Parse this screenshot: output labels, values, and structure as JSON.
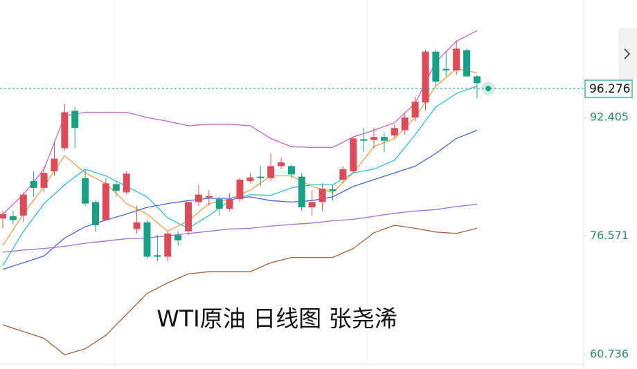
{
  "chart_data": {
    "type": "candlestick",
    "title": "WTI原油 日线图 张尧浠",
    "up_color": "#dd4b58",
    "down_color": "#17a086",
    "open": [
      78.9,
      79.2,
      79.3,
      83.9,
      83.0,
      85.2,
      88.3,
      93.3,
      84.3,
      81.1,
      78.7,
      83.5,
      82.4,
      77.5,
      78.4,
      74.0,
      73.8,
      76.7,
      77.2,
      81.1,
      81.7,
      81.5,
      80.2,
      81.5,
      83.9,
      84.5,
      84.3,
      85.9,
      85.9,
      84.5,
      80.4,
      81.1,
      82.8,
      84.1,
      85.2,
      89.5,
      89.4,
      89.8,
      90.0,
      90.7,
      92.4,
      94.4,
      101.2,
      98.9,
      98.7,
      101.4,
      97.9
    ],
    "close": [
      79.5,
      78.7,
      82.1,
      83.0,
      85.0,
      86.9,
      93.1,
      91.0,
      80.9,
      78.0,
      83.6,
      82.6,
      84.9,
      78.4,
      73.8,
      73.8,
      76.9,
      76.0,
      81.1,
      82.1,
      81.9,
      80.2,
      81.5,
      84.1,
      84.4,
      84.3,
      85.9,
      86.4,
      84.8,
      80.4,
      81.1,
      82.9,
      82.6,
      85.5,
      89.6,
      89.3,
      89.8,
      89.3,
      91.0,
      92.4,
      94.5,
      101.2,
      97.2,
      98.7,
      101.6,
      97.9,
      97.0
    ],
    "high": [
      79.9,
      79.9,
      82.4,
      85.2,
      85.9,
      89.2,
      94.2,
      93.8,
      85.5,
      81.3,
      84.3,
      83.9,
      85.2,
      80.6,
      78.7,
      76.7,
      77.2,
      77.2,
      81.3,
      83.4,
      82.7,
      81.8,
      82.3,
      84.3,
      85.0,
      85.9,
      87.6,
      87.0,
      86.1,
      85.0,
      82.7,
      83.6,
      83.4,
      85.9,
      89.8,
      91.0,
      91.0,
      90.4,
      91.5,
      92.9,
      95.2,
      101.5,
      101.5,
      101.2,
      102.7,
      101.6,
      98.1
    ],
    "low": [
      77.6,
      78.1,
      78.4,
      81.8,
      82.4,
      84.6,
      88.0,
      88.3,
      80.6,
      77.2,
      78.6,
      81.8,
      82.1,
      76.9,
      73.5,
      73.2,
      73.2,
      75.3,
      76.7,
      80.6,
      80.6,
      79.3,
      79.9,
      81.1,
      83.6,
      83.2,
      83.9,
      85.5,
      84.3,
      79.9,
      79.3,
      79.9,
      81.3,
      83.6,
      85.0,
      87.8,
      88.3,
      87.8,
      89.6,
      90.1,
      91.9,
      93.3,
      96.6,
      97.9,
      98.1,
      97.8,
      95.0
    ],
    "line_x": [
      0,
      2,
      4,
      6,
      8,
      10,
      12,
      14,
      16,
      18,
      20,
      22,
      24,
      26,
      28,
      30,
      32,
      34,
      36,
      38,
      40,
      42,
      44,
      46
    ],
    "lines": [
      {
        "color": "#cc5fc8",
        "values": [
          79.5,
          82.1,
          85.5,
          92.6,
          93.1,
          93.1,
          93.1,
          92.4,
          91.9,
          91.3,
          91.5,
          91.5,
          91.3,
          89.6,
          88.5,
          88.4,
          88.4,
          89.8,
          90.7,
          91.7,
          94.3,
          99.8,
          102.6,
          104.0
        ]
      },
      {
        "color": "#f0a040",
        "values": [
          75.3,
          79.5,
          83.2,
          87.3,
          85.0,
          83.6,
          80.9,
          79.5,
          77.2,
          78.6,
          80.9,
          81.5,
          82.7,
          84.6,
          84.6,
          83.2,
          82.4,
          85.0,
          88.5,
          89.6,
          92.4,
          96.6,
          98.9,
          98.4
        ]
      },
      {
        "color": "#2cc0d0",
        "values": [
          72.6,
          77.2,
          80.9,
          83.4,
          85.5,
          84.6,
          83.2,
          81.8,
          79.0,
          77.6,
          79.3,
          81.3,
          82.1,
          82.0,
          83.0,
          83.4,
          83.4,
          85.0,
          85.5,
          86.7,
          90.1,
          93.8,
          95.6,
          96.6
        ]
      },
      {
        "color": "#4a5fd8",
        "values": [
          72.1,
          73.0,
          73.9,
          76.3,
          77.8,
          78.7,
          79.5,
          80.4,
          80.9,
          81.3,
          81.6,
          81.6,
          81.8,
          81.3,
          81.1,
          81.3,
          81.8,
          83.2,
          84.1,
          85.0,
          85.9,
          87.6,
          89.6,
          90.7
        ]
      },
      {
        "color": "#9a6de0",
        "values": [
          74.4,
          74.7,
          74.9,
          75.2,
          75.6,
          75.9,
          76.2,
          76.3,
          76.6,
          76.9,
          77.2,
          77.5,
          77.6,
          77.9,
          78.1,
          78.3,
          78.6,
          78.8,
          79.2,
          79.6,
          79.9,
          80.1,
          80.5,
          80.8
        ]
      },
      {
        "color": "#a0623a",
        "values": [
          64.7,
          63.8,
          62.9,
          60.7,
          61.5,
          63.3,
          66.1,
          68.9,
          70.3,
          71.5,
          71.8,
          71.8,
          71.8,
          73.0,
          73.7,
          73.7,
          73.7,
          74.9,
          77.0,
          78.0,
          77.6,
          77.1,
          76.9,
          77.6
        ]
      }
    ],
    "current_price": 96.276,
    "current_price_color": "#17a086",
    "ylim": [
      59.63,
      108.1
    ],
    "yticks": [
      92.405,
      76.571,
      60.736
    ]
  }
}
